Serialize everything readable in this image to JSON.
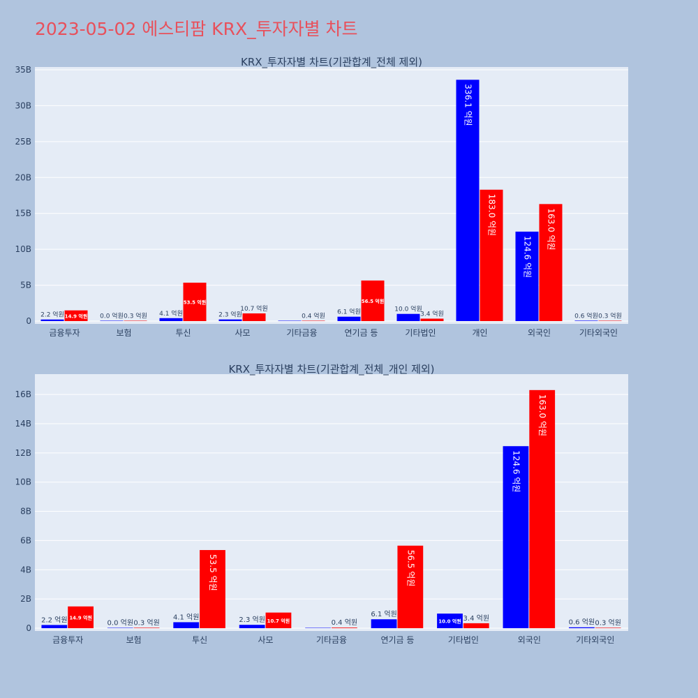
{
  "page": {
    "title": "2023-05-02 에스티팜 KRX_투자자별 차트"
  },
  "colors": {
    "buy": "#0000ff",
    "sell": "#ff0000",
    "plot_bg": "#e5ecf6",
    "page_bg": "#b0c4de",
    "title": "#e8505b"
  },
  "chart_data": [
    {
      "type": "bar",
      "title": "KRX_투자자별 차트(기관합계_전체 제외)",
      "categories": [
        "금융투자",
        "보험",
        "투신",
        "사모",
        "기타금융",
        "연기금 등",
        "기타법인",
        "개인",
        "외국인",
        "기타외국인"
      ],
      "series": [
        {
          "color": "#0000ff",
          "values": [
            220000000,
            0,
            410000000,
            230000000,
            0,
            610000000,
            1000000000,
            33610000000,
            12460000000,
            60000000
          ],
          "labels": [
            "2.2 억원",
            "0.0 억원",
            "4.1 억원",
            "2.3 억원",
            "",
            "6.1 억원",
            "10.0 억원",
            "336.1 억원",
            "124.6 억원",
            "0.6 억원"
          ]
        },
        {
          "color": "#ff0000",
          "values": [
            1490000000,
            30000000,
            5350000000,
            1070000000,
            40000000,
            5650000000,
            340000000,
            18300000000,
            16300000000,
            30000000
          ],
          "labels": [
            "14.9 억원",
            "0.3 억원",
            "53.5 억원",
            "10.7 억원",
            "0.4 억원",
            "56.5 억원",
            "3.4 억원",
            "183.0 억원",
            "163.0 억원",
            "0.3 억원"
          ]
        }
      ],
      "ylim": [
        0,
        35000000000
      ],
      "yticks": [
        0,
        5000000000,
        10000000000,
        15000000000,
        20000000000,
        25000000000,
        30000000000,
        35000000000
      ],
      "ytick_labels": [
        "0",
        "5B",
        "10B",
        "15B",
        "20B",
        "25B",
        "30B",
        "35B"
      ],
      "grid": true
    },
    {
      "type": "bar",
      "title": "KRX_투자자별 차트(기관합계_전체_개인 제외)",
      "categories": [
        "금융투자",
        "보험",
        "투신",
        "사모",
        "기타금융",
        "연기금 등",
        "기타법인",
        "외국인",
        "기타외국인"
      ],
      "series": [
        {
          "color": "#0000ff",
          "values": [
            220000000,
            0,
            410000000,
            230000000,
            0,
            610000000,
            1000000000,
            12460000000,
            60000000
          ],
          "labels": [
            "2.2 억원",
            "0.0 억원",
            "4.1 억원",
            "2.3 억원",
            "",
            "6.1 억원",
            "10.0 억원",
            "124.6 억원",
            "0.6 억원"
          ]
        },
        {
          "color": "#ff0000",
          "values": [
            1490000000,
            30000000,
            5350000000,
            1070000000,
            40000000,
            5650000000,
            340000000,
            16300000000,
            30000000
          ],
          "labels": [
            "14.9 억원",
            "0.3 억원",
            "53.5 억원",
            "10.7 억원",
            "0.4 억원",
            "56.5 억원",
            "3.4 억원",
            "163.0 억원",
            "0.3 억원"
          ]
        }
      ],
      "ylim": [
        0,
        17200000000
      ],
      "yticks": [
        0,
        2000000000,
        4000000000,
        6000000000,
        8000000000,
        10000000000,
        12000000000,
        14000000000,
        16000000000
      ],
      "ytick_labels": [
        "0",
        "2B",
        "4B",
        "6B",
        "8B",
        "10B",
        "12B",
        "14B",
        "16B"
      ],
      "grid": true
    }
  ]
}
